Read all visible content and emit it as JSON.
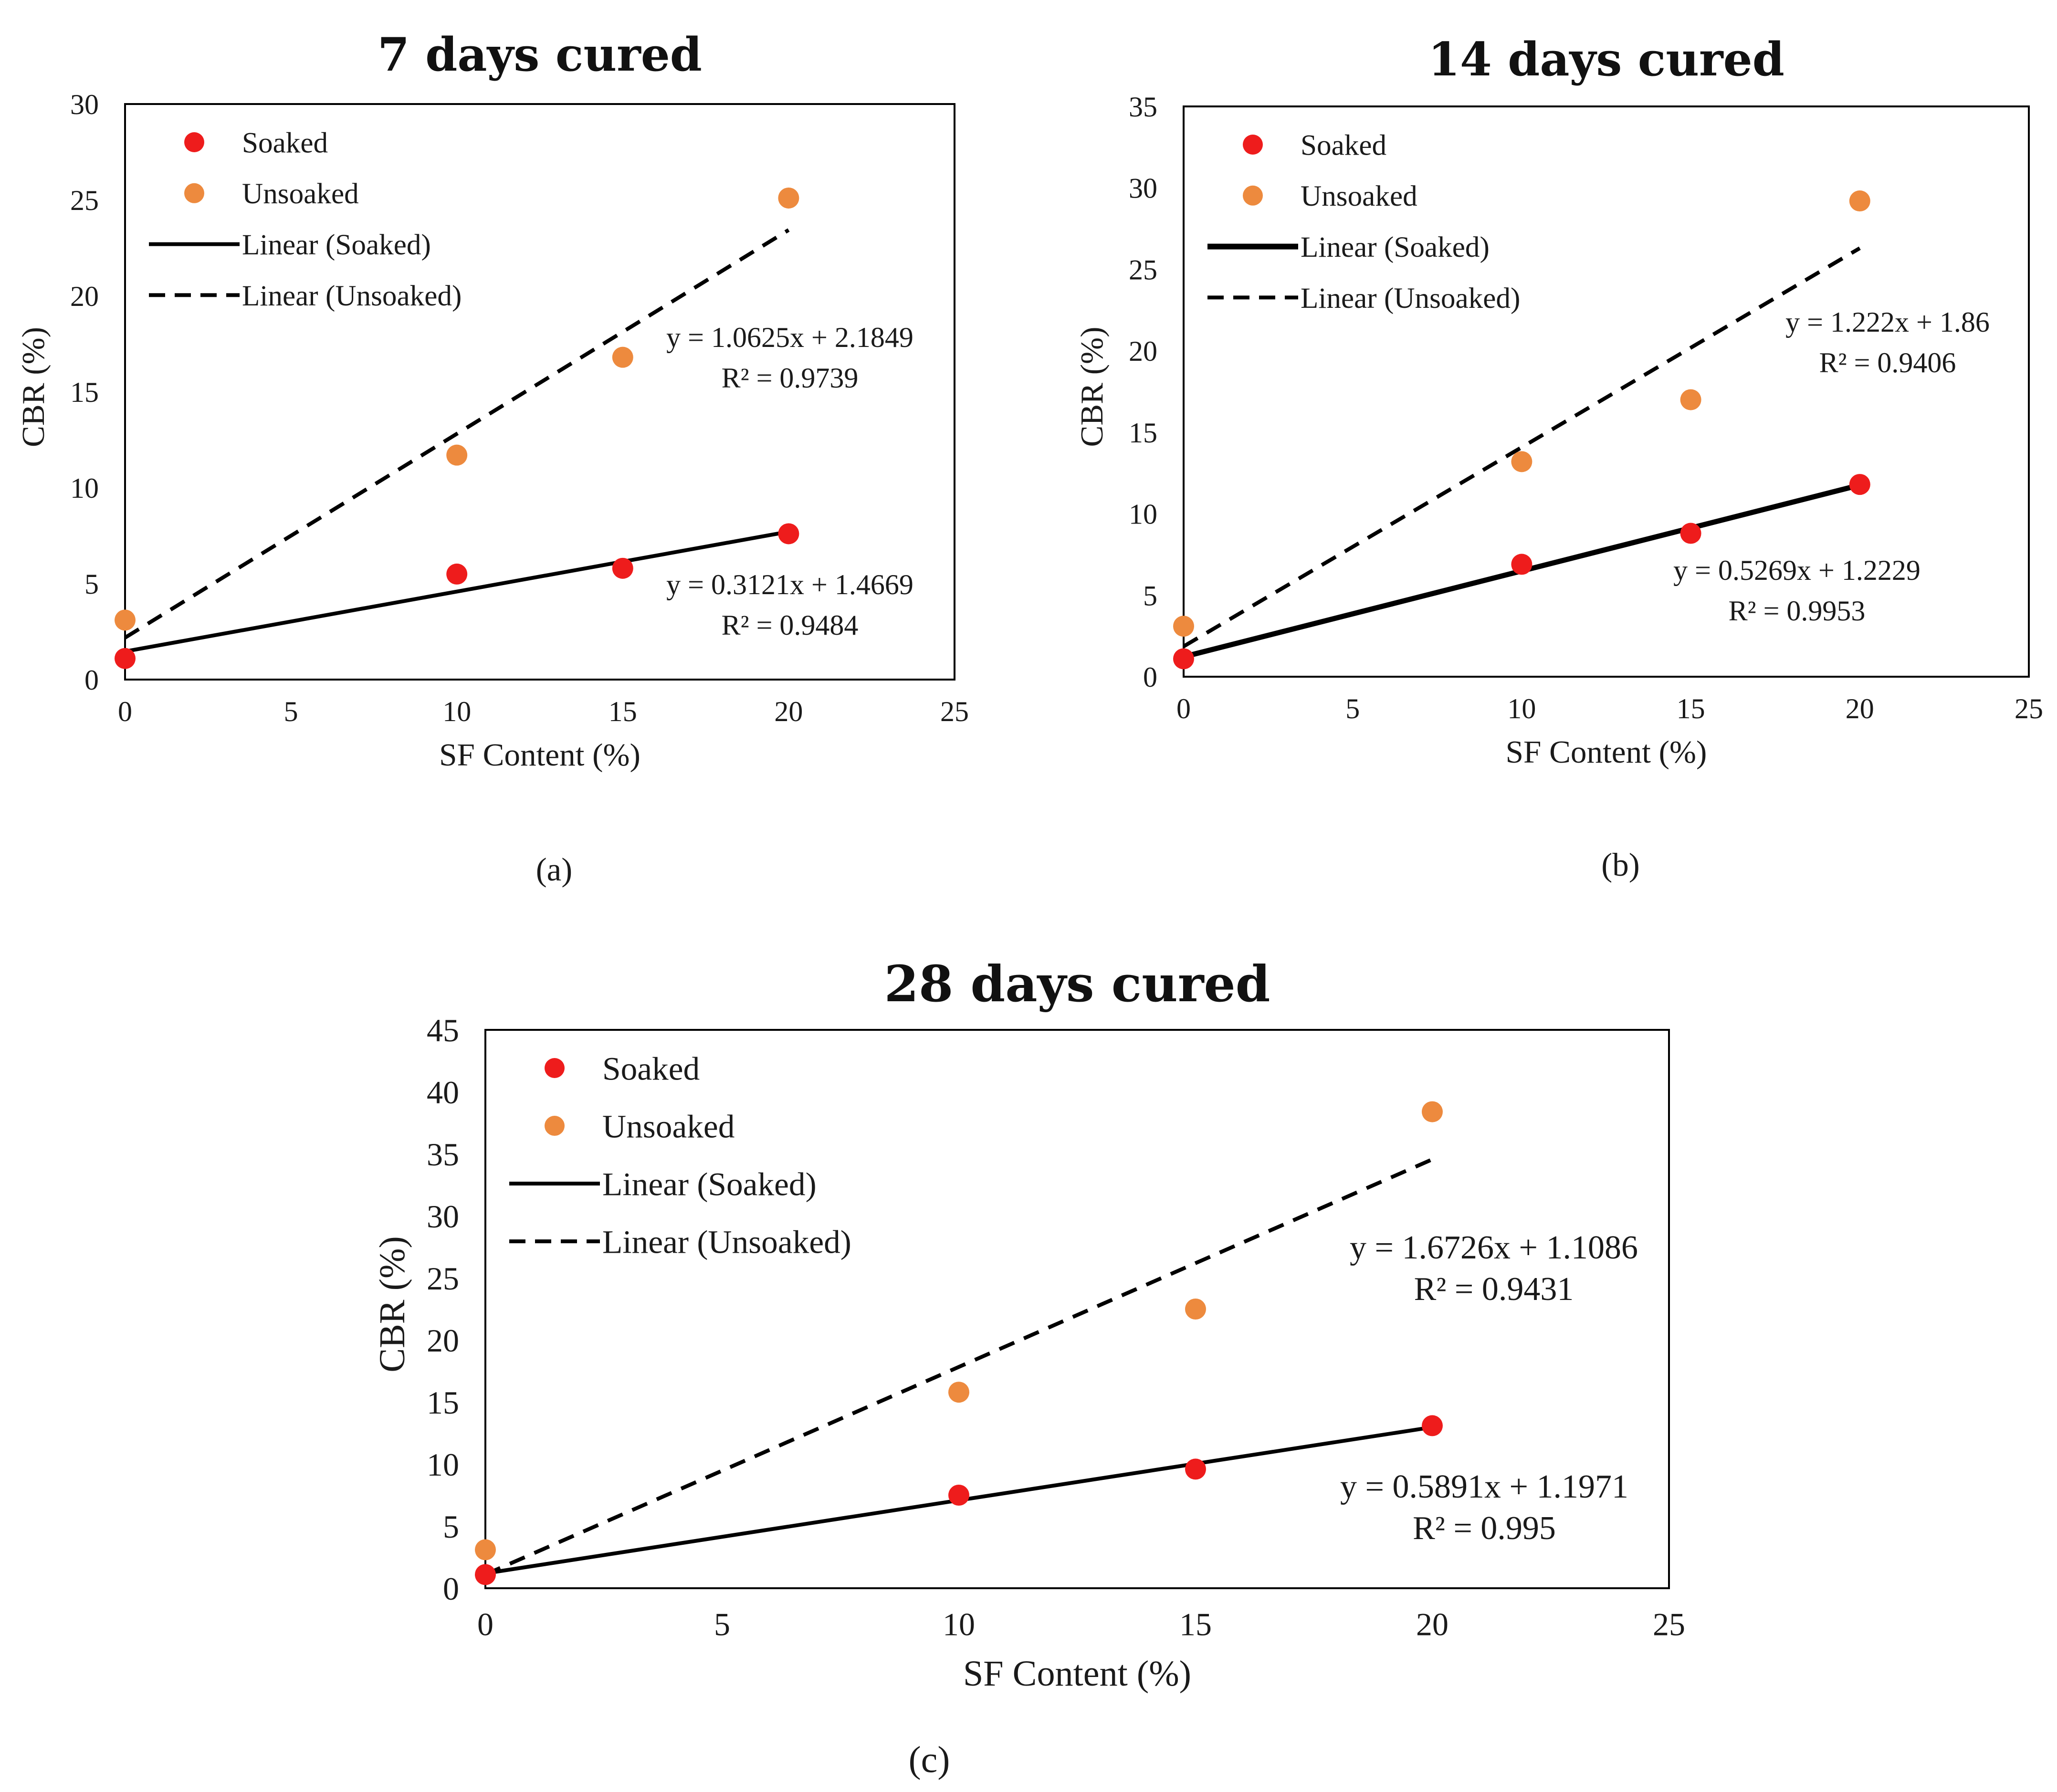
{
  "chart_data": [
    {
      "type": "scatter",
      "title": "7 days cured",
      "caption": "(a)",
      "xlabel": "SF Content (%)",
      "ylabel": "CBR (%)",
      "xlim": [
        0,
        25
      ],
      "ylim": [
        0,
        30
      ],
      "xticks": [
        0,
        5,
        10,
        15,
        20,
        25
      ],
      "yticks": [
        0,
        5,
        10,
        15,
        20,
        25,
        30
      ],
      "legend_position": "top-left",
      "legend": [
        "Soaked",
        "Unsoaked",
        "Linear (Soaked)",
        "Linear (Unsoaked)"
      ],
      "series": [
        {
          "name": "Soaked",
          "color": "#ee1c1c",
          "x": [
            0,
            10,
            15,
            20
          ],
          "y": [
            1.1,
            5.5,
            5.8,
            7.6
          ]
        },
        {
          "name": "Unsoaked",
          "color": "#ed8a3e",
          "x": [
            0,
            10,
            15,
            20
          ],
          "y": [
            3.1,
            11.7,
            16.8,
            25.1
          ]
        }
      ],
      "trendlines": [
        {
          "name": "Linear (Soaked)",
          "slope": 0.3121,
          "intercept": 1.4669,
          "x_range": [
            0,
            20
          ],
          "style": "solid",
          "equation": "y = 0.3121x + 1.4669",
          "r2": "R² = 0.9484"
        },
        {
          "name": "Linear (Unsoaked)",
          "slope": 1.0625,
          "intercept": 2.1849,
          "x_range": [
            0,
            20
          ],
          "style": "dashed",
          "equation": "y = 1.0625x + 2.1849",
          "r2": "R² = 0.9739"
        }
      ]
    },
    {
      "type": "scatter",
      "title": "14 days cured",
      "caption": "(b)",
      "xlabel": "SF Content (%)",
      "ylabel": "CBR (%)",
      "xlim": [
        0,
        25
      ],
      "ylim": [
        0,
        35
      ],
      "xticks": [
        0,
        5,
        10,
        15,
        20,
        25
      ],
      "yticks": [
        0,
        5,
        10,
        15,
        20,
        25,
        30,
        35
      ],
      "legend_position": "top-left",
      "legend": [
        "Soaked",
        "Unsoaked",
        "Linear (Soaked)",
        "Linear (Unsoaked)"
      ],
      "series": [
        {
          "name": "Soaked",
          "color": "#ee1c1c",
          "x": [
            0,
            10,
            15,
            20
          ],
          "y": [
            1.1,
            6.9,
            8.8,
            11.8
          ]
        },
        {
          "name": "Unsoaked",
          "color": "#ed8a3e",
          "x": [
            0,
            10,
            15,
            20
          ],
          "y": [
            3.1,
            13.2,
            17.0,
            29.2
          ]
        }
      ],
      "trendlines": [
        {
          "name": "Linear (Soaked)",
          "slope": 0.5269,
          "intercept": 1.2229,
          "x_range": [
            0,
            20
          ],
          "style": "solid",
          "equation": "y = 0.5269x + 1.2229",
          "r2": "R² = 0.9953"
        },
        {
          "name": "Linear (Unsoaked)",
          "slope": 1.222,
          "intercept": 1.86,
          "x_range": [
            0,
            20
          ],
          "style": "dashed",
          "equation": "y = 1.222x + 1.86",
          "r2": "R² = 0.9406"
        }
      ]
    },
    {
      "type": "scatter",
      "title": "28 days cured",
      "caption": "(c)",
      "xlabel": "SF Content (%)",
      "ylabel": "CBR (%)",
      "xlim": [
        0,
        25
      ],
      "ylim": [
        0,
        45
      ],
      "xticks": [
        0,
        5,
        10,
        15,
        20,
        25
      ],
      "yticks": [
        0,
        5,
        10,
        15,
        20,
        25,
        30,
        35,
        40,
        45
      ],
      "legend_position": "top-left",
      "legend": [
        "Soaked",
        "Unsoaked",
        "Linear (Soaked)",
        "Linear (Unsoaked)"
      ],
      "series": [
        {
          "name": "Soaked",
          "color": "#ee1c1c",
          "x": [
            0,
            10,
            15,
            20
          ],
          "y": [
            1.1,
            7.5,
            9.6,
            13.1
          ]
        },
        {
          "name": "Unsoaked",
          "color": "#ed8a3e",
          "x": [
            0,
            10,
            15,
            20
          ],
          "y": [
            3.1,
            15.8,
            22.5,
            38.4
          ]
        }
      ],
      "trendlines": [
        {
          "name": "Linear (Soaked)",
          "slope": 0.5891,
          "intercept": 1.1971,
          "x_range": [
            0,
            20
          ],
          "style": "solid",
          "equation": "y = 0.5891x + 1.1971",
          "r2": "R² = 0.995"
        },
        {
          "name": "Linear (Unsoaked)",
          "slope": 1.6726,
          "intercept": 1.1086,
          "x_range": [
            0,
            20
          ],
          "style": "dashed",
          "equation": "y = 1.6726x + 1.1086",
          "r2": "R² = 0.9431"
        }
      ]
    }
  ]
}
